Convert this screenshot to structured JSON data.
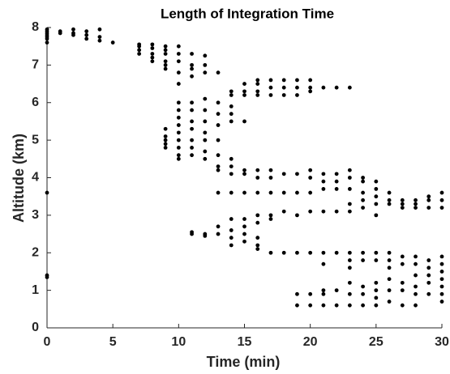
{
  "chart_data": {
    "type": "scatter",
    "title": "Length of Integration Time",
    "x_label": "Time (min)",
    "y_label": "Altitude (km)",
    "color": "#000000",
    "xlim": [
      0,
      30
    ],
    "xticks": [
      0,
      5,
      10,
      15,
      20,
      25,
      30
    ],
    "ylim": [
      0,
      8
    ],
    "yticks": [
      0,
      1,
      2,
      3,
      4,
      5,
      6,
      7,
      8
    ],
    "x": [
      0,
      0,
      0,
      0,
      0,
      0,
      0,
      0,
      0,
      0,
      1,
      1,
      2,
      2,
      2,
      3,
      3,
      3,
      4,
      4,
      4,
      5,
      7,
      7,
      7,
      7,
      8,
      8,
      8,
      8,
      8,
      9,
      9,
      9,
      9,
      9,
      9,
      9,
      9,
      9,
      9,
      9,
      10,
      10,
      10,
      10,
      10,
      10,
      10,
      10,
      10,
      10,
      10,
      10,
      10,
      10,
      11,
      11,
      11,
      11,
      11,
      11,
      11,
      11,
      11,
      11,
      11,
      11,
      11,
      12,
      12,
      12,
      12,
      12,
      12,
      12,
      12,
      12,
      12,
      12,
      12,
      13,
      13,
      13,
      13,
      13,
      13,
      13,
      13,
      13,
      13,
      13,
      14,
      14,
      14,
      14,
      14,
      14,
      14,
      14,
      14,
      14,
      14,
      14,
      14,
      15,
      15,
      15,
      15,
      15,
      15,
      15,
      15,
      15,
      15,
      15,
      16,
      16,
      16,
      16,
      16,
      16,
      16,
      16,
      16,
      16,
      16,
      16,
      17,
      17,
      17,
      17,
      17,
      17,
      17,
      17,
      17,
      18,
      18,
      18,
      18,
      18,
      18,
      18,
      19,
      19,
      19,
      19,
      19,
      19,
      19,
      19,
      19,
      20,
      20,
      20,
      20,
      20,
      20,
      20,
      20,
      20,
      20,
      21,
      21,
      21,
      21,
      21,
      21,
      21,
      21,
      21,
      21,
      22,
      22,
      22,
      22,
      22,
      22,
      22,
      22,
      23,
      23,
      23,
      23,
      23,
      23,
      23,
      23,
      23,
      23,
      23,
      23,
      24,
      24,
      24,
      24,
      24,
      24,
      24,
      24,
      24,
      24,
      25,
      25,
      25,
      25,
      25,
      25,
      25,
      25,
      25,
      25,
      25,
      26,
      26,
      26,
      26,
      26,
      26,
      26,
      26,
      26,
      27,
      27,
      27,
      27,
      27,
      27,
      27,
      27,
      28,
      28,
      28,
      28,
      28,
      28,
      28,
      28,
      28,
      29,
      29,
      29,
      29,
      29,
      29,
      29,
      29,
      30,
      30,
      30,
      30,
      30,
      30,
      30,
      30,
      30,
      30
    ],
    "values": [
      7.95,
      7.9,
      7.85,
      7.8,
      7.75,
      7.7,
      7.6,
      3.6,
      1.4,
      1.35,
      7.9,
      7.85,
      7.95,
      7.85,
      7.8,
      7.9,
      7.8,
      7.7,
      7.95,
      7.75,
      7.65,
      7.6,
      7.55,
      7.5,
      7.4,
      7.3,
      7.55,
      7.45,
      7.3,
      7.2,
      7.1,
      7.5,
      7.4,
      7.3,
      7.1,
      7.0,
      6.9,
      5.3,
      5.1,
      5.0,
      4.9,
      4.8,
      7.5,
      7.3,
      7.1,
      6.8,
      6.5,
      6.0,
      5.8,
      5.6,
      5.4,
      5.2,
      5.0,
      4.8,
      4.6,
      4.5,
      7.3,
      7.0,
      6.9,
      6.7,
      6.0,
      5.8,
      5.5,
      5.3,
      5.0,
      4.8,
      4.6,
      2.55,
      2.5,
      7.25,
      7.0,
      6.8,
      6.1,
      5.8,
      5.5,
      5.2,
      5.0,
      4.7,
      4.5,
      2.5,
      2.45,
      6.8,
      6.0,
      5.7,
      5.4,
      5.0,
      4.6,
      4.3,
      4.2,
      3.6,
      2.7,
      2.5,
      6.3,
      6.2,
      5.9,
      5.7,
      5.5,
      4.5,
      4.3,
      4.1,
      3.6,
      2.9,
      2.6,
      2.4,
      2.2,
      6.5,
      6.3,
      6.2,
      5.5,
      4.2,
      4.1,
      3.6,
      2.9,
      2.7,
      2.5,
      2.3,
      6.6,
      6.5,
      6.3,
      6.2,
      4.2,
      4.0,
      3.6,
      3.0,
      2.8,
      2.4,
      2.2,
      2.1,
      6.6,
      6.4,
      6.2,
      4.2,
      4.0,
      3.6,
      3.0,
      2.9,
      2.0,
      6.6,
      6.4,
      6.2,
      4.1,
      3.6,
      3.1,
      2.0,
      6.6,
      6.4,
      6.2,
      4.1,
      3.6,
      3.0,
      2.0,
      0.9,
      0.6,
      6.6,
      6.4,
      6.3,
      4.2,
      4.0,
      3.6,
      3.1,
      2.0,
      0.9,
      0.6,
      6.4,
      4.1,
      3.9,
      3.7,
      3.1,
      2.0,
      1.7,
      1.0,
      0.9,
      0.6,
      6.4,
      4.1,
      3.9,
      3.7,
      3.1,
      2.0,
      1.0,
      0.6,
      6.4,
      4.2,
      4.0,
      3.7,
      3.3,
      3.1,
      2.0,
      1.8,
      1.6,
      1.2,
      0.9,
      0.6,
      4.0,
      3.9,
      3.6,
      3.4,
      3.2,
      2.0,
      1.8,
      1.1,
      0.9,
      0.6,
      3.9,
      3.7,
      3.5,
      3.3,
      3.0,
      2.0,
      1.8,
      1.2,
      1.0,
      0.8,
      0.6,
      3.6,
      3.4,
      3.3,
      2.0,
      1.8,
      1.6,
      1.3,
      1.0,
      0.7,
      3.4,
      3.3,
      3.2,
      1.9,
      1.7,
      1.2,
      1.0,
      0.6,
      3.4,
      3.3,
      3.2,
      1.9,
      1.7,
      1.4,
      1.1,
      0.9,
      0.6,
      3.5,
      3.4,
      3.2,
      1.8,
      1.6,
      1.4,
      1.2,
      0.9,
      3.6,
      3.4,
      3.2,
      1.9,
      1.7,
      1.5,
      1.3,
      1.1,
      0.9,
      0.7
    ]
  }
}
